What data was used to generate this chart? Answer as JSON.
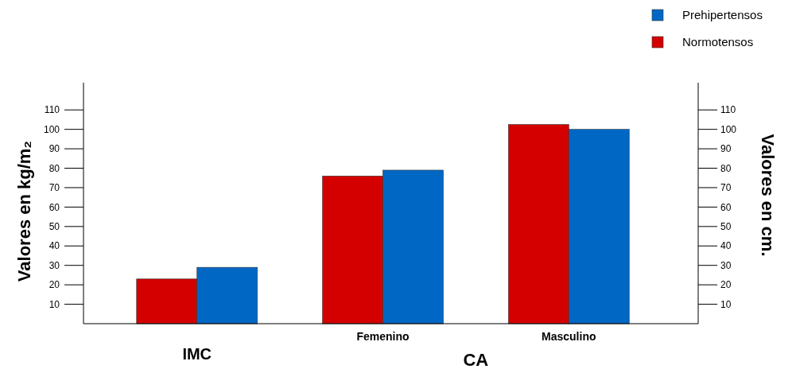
{
  "chart_data": {
    "type": "bar",
    "categories": [
      "IMC",
      "Femenino",
      "Masculino"
    ],
    "xlabel": "CA",
    "ylabel": "Valores en kg/m₂",
    "y2label": "Valores en cm.",
    "series": [
      {
        "name": "Normotensos",
        "color": "#d40000",
        "values": [
          23,
          76,
          102.5
        ]
      },
      {
        "name": "Prehipertensos",
        "color": "#0068c4",
        "values": [
          29,
          79,
          100
        ]
      }
    ],
    "ylim": [
      0,
      124
    ],
    "yticks": [
      10,
      20,
      30,
      40,
      50,
      60,
      70,
      80,
      90,
      100,
      110
    ],
    "y2lim": [
      0,
      124
    ],
    "y2ticks": [
      10,
      20,
      30,
      40,
      50,
      60,
      70,
      80,
      90,
      100,
      110
    ],
    "legend": "top right",
    "grid": false
  }
}
